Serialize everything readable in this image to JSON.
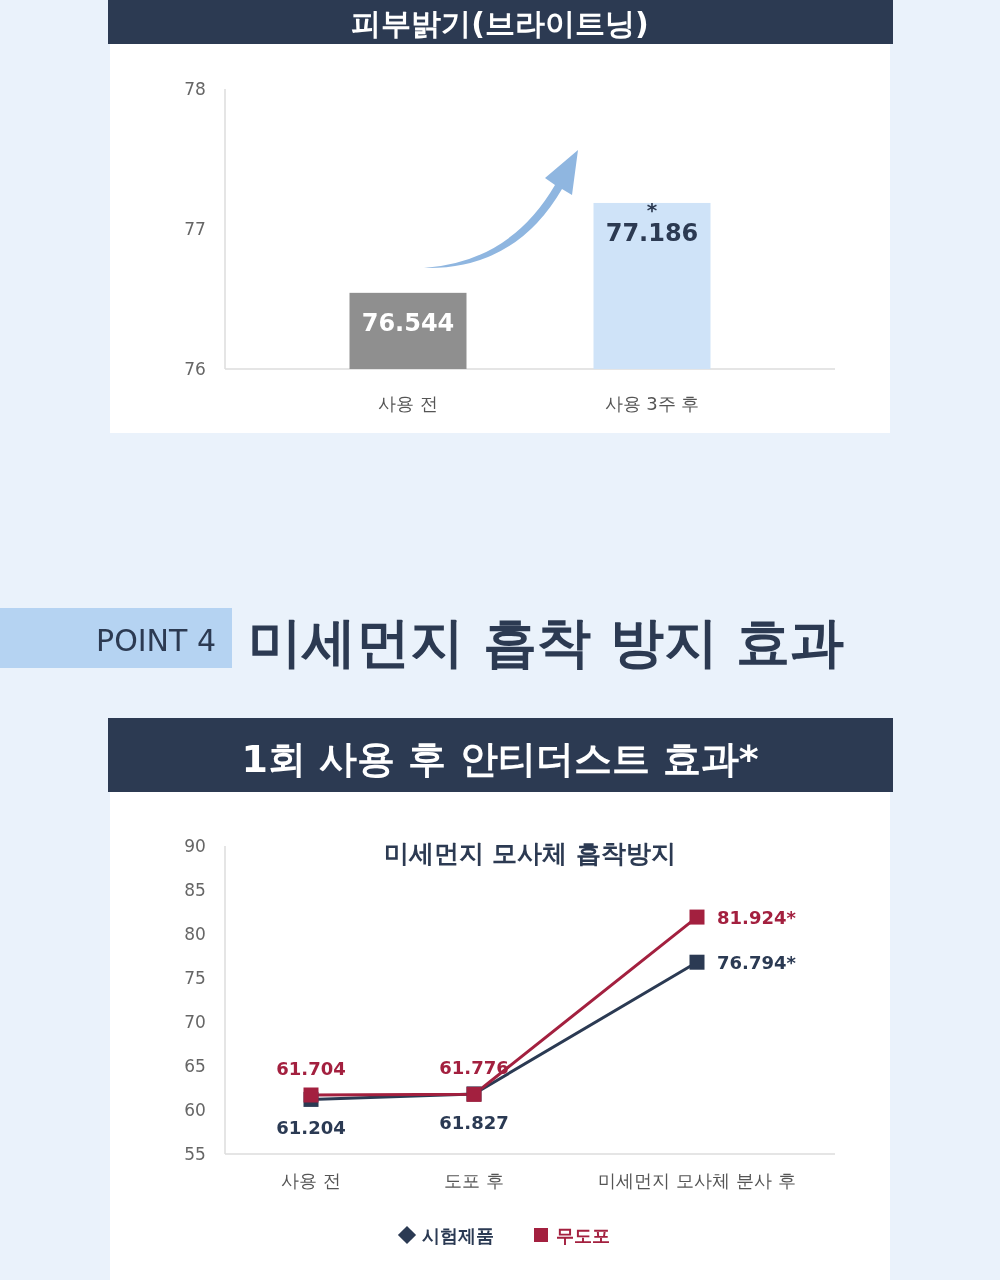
{
  "chart_data": [
    {
      "type": "bar",
      "title": "피부밝기(브라이트닝)",
      "categories": [
        "사용 전",
        "사용 3주 후"
      ],
      "values": [
        76.544,
        77.186
      ],
      "colors": [
        "#8f8f8f",
        "#cfe3f8"
      ],
      "ylim": [
        76,
        78
      ],
      "yticks": [
        76,
        77,
        78
      ],
      "data_labels": true,
      "annotations": [
        {
          "text": "*",
          "x": "사용 3주 후",
          "y": 77.186
        }
      ]
    },
    {
      "type": "line",
      "title": "1회 사용 후 안티더스트 효과*",
      "subtitle": "미세먼지 모사체 흡착방지",
      "annotations": [
        "POINT 4",
        "미세먼지 흡착 방지 효과"
      ],
      "categories": [
        "사용 전",
        "도포 후",
        "미세먼지 모사체 분사 후"
      ],
      "ylim": [
        55,
        90
      ],
      "yticks": [
        55,
        60,
        65,
        70,
        75,
        80,
        85,
        90
      ],
      "marker": "square",
      "legend": "bottom",
      "series": [
        {
          "name": "시험제품",
          "color": "#2b3a53",
          "values": [
            61.204,
            61.827,
            76.794
          ],
          "value_labels": [
            "61.204",
            "61.827",
            "76.794*"
          ]
        },
        {
          "name": "무도포",
          "color": "#a3203f",
          "values": [
            61.704,
            61.776,
            81.924
          ],
          "value_labels": [
            "61.704",
            "61.776",
            "81.924*"
          ]
        }
      ]
    }
  ]
}
